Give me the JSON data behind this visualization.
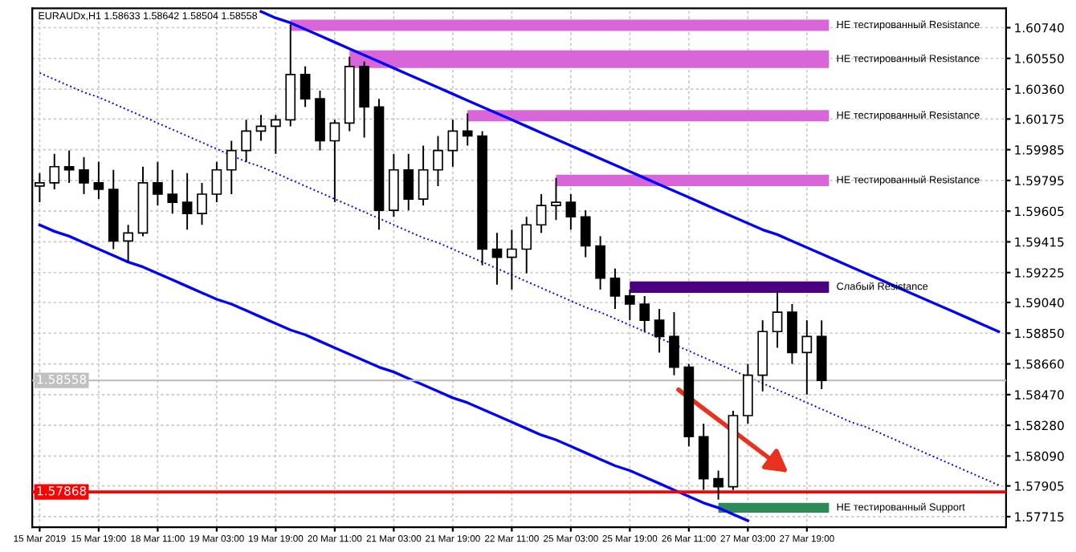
{
  "chart_data": {
    "type": "candlestick",
    "title": "EURAUDx,H1 1.58633 1.58642 1.58504 1.58558",
    "categories": [
      "15 Mar 2019",
      null,
      null,
      null,
      "15 Mar 19:00",
      null,
      null,
      null,
      "18 Mar 11:00",
      null,
      null,
      null,
      "19 Mar 03:00",
      null,
      null,
      null,
      "19 Mar 19:00",
      null,
      null,
      null,
      "20 Mar 11:00",
      null,
      null,
      null,
      "21 Mar 03:00",
      null,
      null,
      null,
      "21 Mar 19:00",
      null,
      null,
      null,
      "22 Mar 11:00",
      null,
      null,
      null,
      "25 Mar 03:00",
      null,
      null,
      null,
      "25 Mar 19:00",
      null,
      null,
      null,
      "26 Mar 11:00",
      null,
      null,
      null,
      "27 Mar 03:00",
      null,
      null,
      null,
      "27 Mar 19:00",
      null,
      null,
      null,
      null,
      null,
      null,
      null,
      null,
      null,
      null,
      null,
      null,
      null
    ],
    "color": "#000000",
    "ohlc": [
      [
        1.5976,
        1.5984,
        1.5966,
        1.5978
      ],
      [
        1.5978,
        1.5996,
        1.5974,
        1.5988
      ],
      [
        1.5988,
        1.5998,
        1.5978,
        1.5986
      ],
      [
        1.5986,
        1.5994,
        1.5971,
        1.5978
      ],
      [
        1.5978,
        1.5991,
        1.5968,
        1.5974
      ],
      [
        1.5974,
        1.5986,
        1.5937,
        1.5942
      ],
      [
        1.5942,
        1.5952,
        1.5929,
        1.5947
      ],
      [
        1.5947,
        1.5988,
        1.5945,
        1.5978
      ],
      [
        1.5978,
        1.5991,
        1.5964,
        1.5971
      ],
      [
        1.5971,
        1.5986,
        1.5959,
        1.5966
      ],
      [
        1.5966,
        1.5984,
        1.5949,
        1.5959
      ],
      [
        1.5959,
        1.5978,
        1.5952,
        1.5971
      ],
      [
        1.5971,
        1.5991,
        1.5966,
        1.5986
      ],
      [
        1.5986,
        1.6004,
        1.5971,
        1.5998
      ],
      [
        1.5998,
        1.6017,
        1.5991,
        1.601
      ],
      [
        1.601,
        1.602,
        1.6004,
        1.6013
      ],
      [
        1.6013,
        1.602,
        1.5996,
        1.6017
      ],
      [
        1.6017,
        1.6076,
        1.6013,
        1.6045
      ],
      [
        1.6045,
        1.605,
        1.6025,
        1.603
      ],
      [
        1.603,
        1.6035,
        1.5998,
        1.6004
      ],
      [
        1.6004,
        1.6017,
        1.5966,
        1.6015
      ],
      [
        1.6015,
        1.6056,
        1.601,
        1.605
      ],
      [
        1.605,
        1.6053,
        1.6006,
        1.6025
      ],
      [
        1.6025,
        1.603,
        1.5949,
        1.5961
      ],
      [
        1.5961,
        1.5996,
        1.5957,
        1.5986
      ],
      [
        1.5986,
        1.5996,
        1.5961,
        1.5968
      ],
      [
        1.5968,
        1.6001,
        1.5964,
        1.5986
      ],
      [
        1.5986,
        1.6007,
        1.5976,
        1.5998
      ],
      [
        1.5998,
        1.6017,
        1.5988,
        1.601
      ],
      [
        1.601,
        1.6021,
        1.6001,
        1.6007
      ],
      [
        1.6007,
        1.601,
        1.5927,
        1.5937
      ],
      [
        1.5937,
        1.5947,
        1.5915,
        1.5932
      ],
      [
        1.5932,
        1.5949,
        1.5912,
        1.5937
      ],
      [
        1.5937,
        1.5957,
        1.5922,
        1.5952
      ],
      [
        1.5952,
        1.5971,
        1.5947,
        1.5964
      ],
      [
        1.5964,
        1.5981,
        1.5955,
        1.5966
      ],
      [
        1.5966,
        1.5971,
        1.5949,
        1.5957
      ],
      [
        1.5957,
        1.5961,
        1.5932,
        1.5939
      ],
      [
        1.5939,
        1.5945,
        1.5912,
        1.5919
      ],
      [
        1.5919,
        1.5925,
        1.59,
        1.5908
      ],
      [
        1.5908,
        1.5912,
        1.5893,
        1.5903
      ],
      [
        1.5903,
        1.5908,
        1.5886,
        1.5893
      ],
      [
        1.5893,
        1.59,
        1.5873,
        1.5883
      ],
      [
        1.5883,
        1.5898,
        1.5859,
        1.5864
      ],
      [
        1.5864,
        1.5866,
        1.5815,
        1.5821
      ],
      [
        1.5821,
        1.5829,
        1.5788,
        1.5795
      ],
      [
        1.5795,
        1.58,
        1.5782,
        1.579
      ],
      [
        1.579,
        1.5837,
        1.5788,
        1.5834
      ],
      [
        1.5834,
        1.5866,
        1.5829,
        1.5859
      ],
      [
        1.5859,
        1.5893,
        1.5849,
        1.5886
      ],
      [
        1.5886,
        1.5911,
        1.5876,
        1.5898
      ],
      [
        1.5898,
        1.5903,
        1.5866,
        1.5873
      ],
      [
        1.5873,
        1.5893,
        1.5847,
        1.5883
      ],
      [
        1.5883,
        1.5893,
        1.58504,
        1.58558
      ],
      null,
      null,
      null,
      null,
      null,
      null,
      null,
      null,
      null,
      null,
      null,
      null
    ],
    "series": [
      {
        "type": "line",
        "color": "#0000ff",
        "line_style": "solid",
        "values": [
          null,
          null,
          null,
          null,
          null,
          null,
          null,
          null,
          null,
          null,
          null,
          null,
          null,
          null,
          null,
          1.6084,
          1.608,
          1.6077,
          1.6073,
          1.6069,
          1.6065,
          1.6061,
          1.6057,
          1.6053,
          1.6049,
          1.6045,
          1.6041,
          1.6037,
          1.6033,
          1.6029,
          1.6025,
          1.6021,
          1.6017,
          1.6013,
          1.6009,
          1.6005,
          1.6001,
          1.5997,
          1.5993,
          1.5989,
          1.5985,
          1.5981,
          1.5977,
          1.5973,
          1.5969,
          1.5965,
          1.5961,
          1.5957,
          1.5953,
          1.5949,
          1.5946,
          1.5942,
          1.5938,
          1.5934,
          1.593,
          1.5926,
          1.5922,
          1.5918,
          1.5914,
          1.591,
          1.5906,
          1.5902,
          1.5898,
          1.5894,
          1.589,
          1.5886
        ]
      },
      {
        "type": "line",
        "color": "#0000ff",
        "line_style": "dotted",
        "values": [
          1.6046,
          1.6042,
          1.6038,
          1.6034,
          1.6031,
          1.6027,
          1.6023,
          1.6019,
          1.6015,
          1.6011,
          1.6007,
          1.6003,
          1.5999,
          1.5995,
          1.5991,
          1.5988,
          1.5984,
          1.598,
          1.5976,
          1.5972,
          1.5968,
          1.5964,
          1.596,
          1.5956,
          1.5952,
          1.5948,
          1.5944,
          1.5941,
          1.5937,
          1.5933,
          1.5929,
          1.5925,
          1.5921,
          1.5917,
          1.5913,
          1.5909,
          1.5905,
          1.5901,
          1.5898,
          1.5894,
          1.589,
          1.5886,
          1.5882,
          1.5878,
          1.5874,
          1.587,
          1.5866,
          1.5862,
          1.5858,
          1.5854,
          1.585,
          1.5846,
          1.5842,
          1.5838,
          1.5834,
          1.583,
          1.5827,
          1.5823,
          1.5819,
          1.5815,
          1.5811,
          1.5807,
          1.5803,
          1.5799,
          1.5795,
          1.5791
        ]
      },
      {
        "type": "line",
        "color": "#0000ff",
        "line_style": "solid",
        "values": [
          1.5952,
          1.5948,
          1.5945,
          1.5941,
          1.5937,
          1.5933,
          1.5929,
          1.5926,
          1.5922,
          1.5918,
          1.5914,
          1.591,
          1.5906,
          1.5903,
          1.5899,
          1.5895,
          1.5891,
          1.5887,
          1.5884,
          1.588,
          1.5876,
          1.5872,
          1.5868,
          1.5864,
          1.5861,
          1.5857,
          1.5853,
          1.5849,
          1.5845,
          1.5842,
          1.5838,
          1.5834,
          1.583,
          1.5826,
          1.5822,
          1.5819,
          1.5815,
          1.5811,
          1.5807,
          1.5803,
          1.58,
          1.5796,
          1.5792,
          1.5788,
          1.5784,
          1.578,
          1.5777,
          1.5773,
          1.5769,
          null,
          null,
          null,
          null,
          null,
          null,
          null,
          null,
          null,
          null,
          null,
          null,
          null,
          null,
          null,
          null,
          null
        ]
      }
    ],
    "ylim": [
      1.5765,
      1.6086
    ],
    "yticks": [
      {
        "value": 1.6074,
        "label": "1.60740"
      },
      {
        "value": 1.6055,
        "label": "1.60550"
      },
      {
        "value": 1.6036,
        "label": "1.60360"
      },
      {
        "value": 1.60175,
        "label": "1.60175"
      },
      {
        "value": 1.59985,
        "label": "1.59985"
      },
      {
        "value": 1.59795,
        "label": "1.59795"
      },
      {
        "value": 1.59605,
        "label": "1.59605"
      },
      {
        "value": 1.59415,
        "label": "1.59415"
      },
      {
        "value": 1.59225,
        "label": "1.59225"
      },
      {
        "value": 1.5904,
        "label": "1.59040"
      },
      {
        "value": 1.5885,
        "label": "1.58850"
      },
      {
        "value": 1.5866,
        "label": "1.58660"
      },
      {
        "value": 1.5847,
        "label": "1.58470"
      },
      {
        "value": 1.5828,
        "label": "1.58280"
      },
      {
        "value": 1.5809,
        "label": "1.58090"
      },
      {
        "value": 1.57905,
        "label": "1.57905"
      },
      {
        "value": 1.57715,
        "label": "1.57715"
      }
    ],
    "bands": [
      {
        "axis": "y",
        "from": 1.6072,
        "to": 1.6079,
        "label": "НЕ тестированный Resistance",
        "color": "#d966d9"
      },
      {
        "axis": "y",
        "from": 1.6049,
        "to": 1.606,
        "label": "НЕ тестированный Resistance",
        "color": "#d966d9"
      },
      {
        "axis": "y",
        "from": 1.6016,
        "to": 1.6023,
        "label": "НЕ тестированный Resistance",
        "color": "#d966d9"
      },
      {
        "axis": "y",
        "from": 1.5976,
        "to": 1.5983,
        "label": "НЕ тестированный Resistance",
        "color": "#d966d9"
      },
      {
        "axis": "y",
        "from": 1.591,
        "to": 1.5917,
        "label": "Слабый Resistance",
        "color": "#4b0082"
      },
      {
        "axis": "y",
        "from": 1.5774,
        "to": 1.578,
        "label": "НЕ тестированный Support",
        "color": "#2e8b57"
      }
    ],
    "ref_lines": [
      {
        "axis": "y",
        "value": 1.57868,
        "label": "1.57868",
        "color": "#ff0000"
      },
      {
        "axis": "y",
        "value": 1.58558,
        "label": "1.58558",
        "color": "#c0c0c0"
      }
    ],
    "grid": true
  }
}
